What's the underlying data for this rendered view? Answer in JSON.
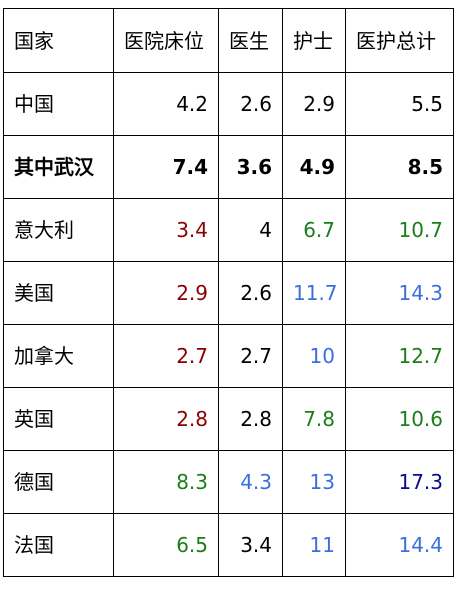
{
  "table": {
    "headers": [
      "国家",
      "医院床位",
      "医生",
      "护士",
      "医护总计"
    ],
    "rows": [
      {
        "country": "中国",
        "bold": false,
        "cells": [
          {
            "value": "4.2",
            "color": "default"
          },
          {
            "value": "2.6",
            "color": "default"
          },
          {
            "value": "2.9",
            "color": "default"
          },
          {
            "value": "5.5",
            "color": "default"
          }
        ]
      },
      {
        "country": "其中武汉",
        "bold": true,
        "cells": [
          {
            "value": "7.4",
            "color": "default"
          },
          {
            "value": "3.6",
            "color": "default"
          },
          {
            "value": "4.9",
            "color": "default"
          },
          {
            "value": "8.5",
            "color": "default"
          }
        ]
      },
      {
        "country": "意大利",
        "bold": false,
        "cells": [
          {
            "value": "3.4",
            "color": "darkred"
          },
          {
            "value": "4",
            "color": "default"
          },
          {
            "value": "6.7",
            "color": "green"
          },
          {
            "value": "10.7",
            "color": "green"
          }
        ]
      },
      {
        "country": "美国",
        "bold": false,
        "cells": [
          {
            "value": "2.9",
            "color": "darkred"
          },
          {
            "value": "2.6",
            "color": "default"
          },
          {
            "value": "11.7",
            "color": "blue"
          },
          {
            "value": "14.3",
            "color": "blue"
          }
        ]
      },
      {
        "country": "加拿大",
        "bold": false,
        "cells": [
          {
            "value": "2.7",
            "color": "darkred"
          },
          {
            "value": "2.7",
            "color": "default"
          },
          {
            "value": "10",
            "color": "blue"
          },
          {
            "value": "12.7",
            "color": "green"
          }
        ]
      },
      {
        "country": "英国",
        "bold": false,
        "cells": [
          {
            "value": "2.8",
            "color": "darkred"
          },
          {
            "value": "2.8",
            "color": "default"
          },
          {
            "value": "7.8",
            "color": "green"
          },
          {
            "value": "10.6",
            "color": "green"
          }
        ]
      },
      {
        "country": "德国",
        "bold": false,
        "cells": [
          {
            "value": "8.3",
            "color": "green"
          },
          {
            "value": "4.3",
            "color": "blue"
          },
          {
            "value": "13",
            "color": "blue"
          },
          {
            "value": "17.3",
            "color": "navy"
          }
        ]
      },
      {
        "country": "法国",
        "bold": false,
        "cells": [
          {
            "value": "6.5",
            "color": "green"
          },
          {
            "value": "3.4",
            "color": "default"
          },
          {
            "value": "11",
            "color": "blue"
          },
          {
            "value": "14.4",
            "color": "blue"
          }
        ]
      }
    ]
  },
  "colors": {
    "default": "#000000",
    "darkred": "#8b0000",
    "green": "#1a7f1a",
    "blue": "#3b6fe0",
    "navy": "#0a0a8c",
    "border": "#000000",
    "background": "#ffffff"
  }
}
